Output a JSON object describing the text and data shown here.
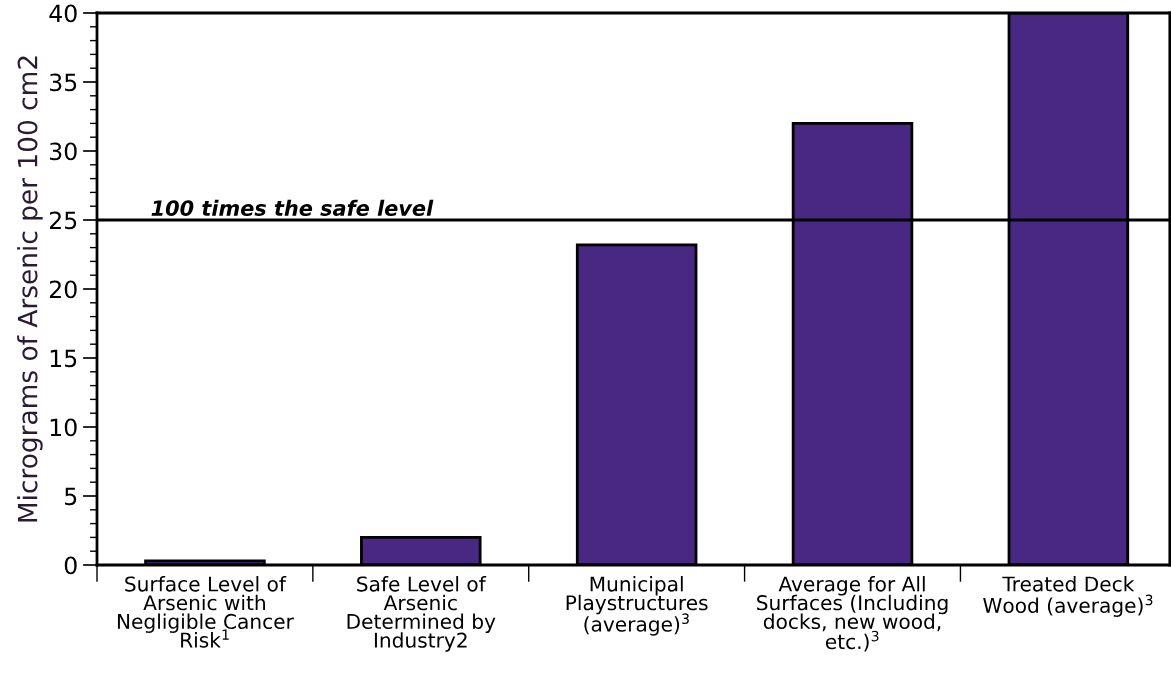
{
  "chart_data": {
    "type": "bar",
    "ylabel": "Micrograms of Arsenic per 100 cm2",
    "categories": [
      "Surface Level of\nArsenic with\nNegligible Cancer\nRisk$^{1}$",
      "Safe Level of\nArsenic\nDetermined by\nIndustry2",
      "Municipal\nPlaystructures\n(average)$^{3}$",
      "Average for All\nSurfaces (Including\ndocks, new wood,\netc.)$^{3}$",
      "Treated Deck\nWood (average)$^{3}$"
    ],
    "values": [
      0.3,
      2,
      23.2,
      32,
      40
    ],
    "color": "#482882",
    "ylim": [
      0,
      40
    ],
    "yticks": [
      0,
      5,
      10,
      15,
      20,
      25,
      30,
      35,
      40
    ],
    "grid": false,
    "legend": false,
    "ref_lines": [
      {
        "axis": "y",
        "value": 25,
        "label": "100 times the safe level",
        "color": "#000000",
        "line_style": "solid"
      }
    ]
  }
}
